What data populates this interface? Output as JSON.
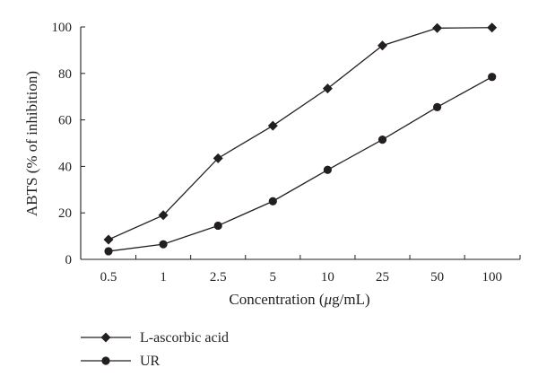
{
  "chart_data": {
    "type": "line",
    "x": [
      "0.5",
      "1",
      "2.5",
      "5",
      "10",
      "25",
      "50",
      "100"
    ],
    "series": [
      {
        "name": "L-ascorbic acid",
        "marker": "diamond",
        "values": [
          8.5,
          19,
          43.5,
          57.5,
          73.5,
          92,
          99.5,
          99.7
        ]
      },
      {
        "name": "UR",
        "marker": "circle",
        "values": [
          3.5,
          6.5,
          14.5,
          25,
          38.5,
          51.5,
          65.5,
          78.5
        ]
      }
    ],
    "xlabel_prefix": "Concentration (",
    "xlabel_mu": "μ",
    "xlabel_suffix": "g/mL)",
    "ylabel": "ABTS (% of inhibition)",
    "ylim": [
      0,
      100
    ],
    "yticks": [
      0,
      20,
      40,
      60,
      80,
      100
    ],
    "grid": false,
    "legend_position": "bottom-left",
    "colors": {
      "ink": "#231f20",
      "background": "#ffffff"
    }
  }
}
